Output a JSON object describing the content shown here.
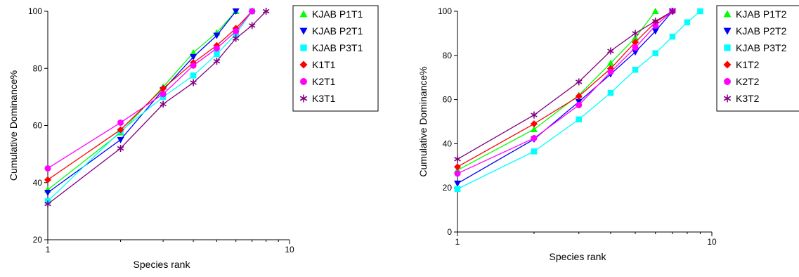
{
  "chart_data": [
    {
      "type": "line",
      "xscale": "log",
      "xlabel": "Species rank",
      "ylabel": "Cumulative Dominance%",
      "xlim": [
        1,
        10
      ],
      "ylim": [
        20,
        100
      ],
      "xticks": [
        1,
        10
      ],
      "xtick_labels": [
        "1",
        "10"
      ],
      "yticks": [
        20,
        40,
        60,
        80,
        100
      ],
      "ytick_labels": [
        "20",
        "40",
        "60",
        "80",
        "100"
      ],
      "grid": false,
      "legend_position": "top-right",
      "series": [
        {
          "name": "KJAB P1T1",
          "color": "#00ff00",
          "marker": "triangle-up",
          "x": [
            1,
            2,
            3,
            4,
            5,
            6
          ],
          "y": [
            37.5,
            57.5,
            73.5,
            85.5,
            92.5,
            100
          ]
        },
        {
          "name": "KJAB P2T1",
          "color": "#0000ff",
          "marker": "triangle-down",
          "x": [
            1,
            2,
            3,
            4,
            5,
            6
          ],
          "y": [
            36.5,
            55,
            72.5,
            84,
            91.5,
            100
          ]
        },
        {
          "name": "KJAB P3T1",
          "color": "#00ffff",
          "marker": "square",
          "x": [
            1,
            2,
            3,
            4,
            5,
            6,
            7
          ],
          "y": [
            33.5,
            58,
            70,
            77.5,
            85,
            92,
            100
          ]
        },
        {
          "name": "K1T1",
          "color": "#ff0000",
          "marker": "diamond",
          "x": [
            1,
            2,
            3,
            4,
            5,
            6,
            7
          ],
          "y": [
            41,
            58.5,
            73,
            82,
            88,
            94,
            100
          ]
        },
        {
          "name": "K2T1",
          "color": "#ff00ff",
          "marker": "circle",
          "x": [
            1,
            2,
            3,
            4,
            5,
            6,
            7
          ],
          "y": [
            45,
            61,
            71,
            81,
            87,
            93,
            100
          ]
        },
        {
          "name": "K3T1",
          "color": "#800080",
          "marker": "asterisk",
          "x": [
            1,
            2,
            3,
            4,
            5,
            6,
            7,
            8
          ],
          "y": [
            32.5,
            52,
            67.5,
            75,
            82.5,
            90.5,
            95,
            100
          ]
        }
      ]
    },
    {
      "type": "line",
      "xscale": "log",
      "xlabel": "Species rank",
      "ylabel": "Cumulative Dominance%",
      "xlim": [
        1,
        10
      ],
      "ylim": [
        0,
        100
      ],
      "xticks": [
        1,
        10
      ],
      "xtick_labels": [
        "1",
        "10"
      ],
      "yticks": [
        0,
        20,
        40,
        60,
        80,
        100
      ],
      "ytick_labels": [
        "0",
        "20",
        "40",
        "60",
        "80",
        "100"
      ],
      "grid": false,
      "legend_position": "top-right",
      "series": [
        {
          "name": "KJAB P1T2",
          "color": "#00ff00",
          "marker": "triangle-up",
          "x": [
            1,
            2,
            3,
            4,
            5,
            6
          ],
          "y": [
            28,
            46.5,
            62,
            76.5,
            88,
            100
          ]
        },
        {
          "name": "KJAB P2T2",
          "color": "#0000ff",
          "marker": "triangle-down",
          "x": [
            1,
            2,
            3,
            4,
            5,
            6,
            7
          ],
          "y": [
            22,
            42,
            59,
            71.5,
            81.5,
            91,
            100
          ]
        },
        {
          "name": "KJAB P3T2",
          "color": "#00ffff",
          "marker": "square",
          "x": [
            1,
            2,
            3,
            4,
            5,
            6,
            7,
            8,
            9
          ],
          "y": [
            19.5,
            36.5,
            51,
            63,
            73.5,
            81,
            88.5,
            95,
            100
          ]
        },
        {
          "name": "K1T2",
          "color": "#ff0000",
          "marker": "diamond",
          "x": [
            1,
            2,
            3,
            4,
            5,
            6,
            7
          ],
          "y": [
            29.5,
            49,
            61.5,
            74,
            86,
            95,
            100
          ]
        },
        {
          "name": "K2T2",
          "color": "#ff00ff",
          "marker": "circle",
          "x": [
            1,
            2,
            3,
            4,
            5,
            6,
            7
          ],
          "y": [
            26.5,
            42.5,
            57.5,
            72.5,
            83.5,
            93.5,
            100
          ]
        },
        {
          "name": "K3T2",
          "color": "#800080",
          "marker": "asterisk",
          "x": [
            1,
            2,
            3,
            4,
            5,
            6,
            7
          ],
          "y": [
            33,
            53,
            68,
            82,
            90,
            95.5,
            100
          ]
        }
      ]
    }
  ]
}
